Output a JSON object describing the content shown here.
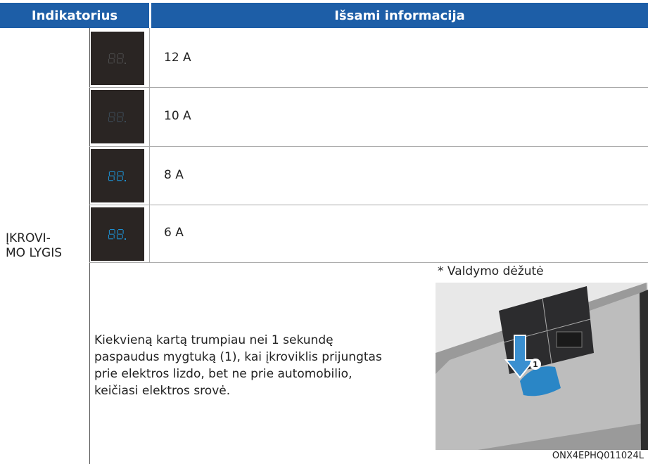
{
  "header": {
    "columns": [
      "Indikatorius",
      "Išsami informacija"
    ]
  },
  "indicator": "ĮKROVI-\nMO LYGIS",
  "levels": [
    "12 A",
    "10 A",
    "8 A",
    "6 A"
  ],
  "description": "Kiekvieną kartą trumpiau nei 1 sekundę\npaspaudus mygtuką (1), kai įkroviklis prijungtas\nprie elektros lizdo, bet ne prie automobilio,\nkeičiasi elektros srovė.",
  "figure": {
    "caption": "* Valdymo dėžutė",
    "callout": "1",
    "code": "ONX4EPHQ011024L"
  }
}
